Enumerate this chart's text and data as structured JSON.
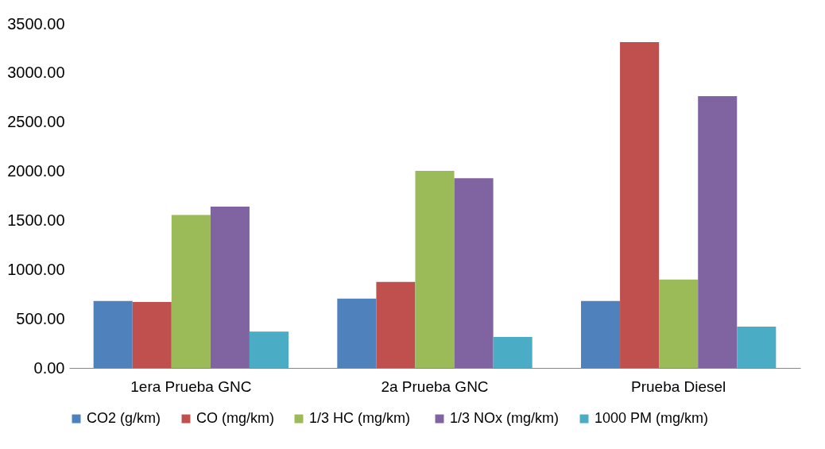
{
  "chart_data": {
    "type": "bar",
    "categories": [
      "1era Prueba GNC",
      "2a Prueba GNC",
      "Prueba Diesel"
    ],
    "series": [
      {
        "name": "CO2 (g/km)",
        "color": "#4f81bd",
        "values": [
          680,
          705,
          680
        ]
      },
      {
        "name": "CO (mg/km)",
        "color": "#c0504d",
        "values": [
          670,
          875,
          3315
        ]
      },
      {
        "name": "1/3 HC  (mg/km)",
        "color": "#9bbb59",
        "values": [
          1555,
          2005,
          900
        ]
      },
      {
        "name": "1/3 NOx (mg/km)",
        "color": "#8064a2",
        "values": [
          1640,
          1930,
          2765
        ]
      },
      {
        "name": "1000 PM (mg/km)",
        "color": "#4bacc6",
        "values": [
          370,
          315,
          420
        ]
      }
    ],
    "ylim": [
      0,
      3500
    ],
    "yticks": [
      {
        "value": 0,
        "label": "0.00"
      },
      {
        "value": 500,
        "label": "500.00"
      },
      {
        "value": 1000,
        "label": "1000.00"
      },
      {
        "value": 1500,
        "label": "1500.00"
      },
      {
        "value": 2000,
        "label": "2000.00"
      },
      {
        "value": 2500,
        "label": "2500.00"
      },
      {
        "value": 3000,
        "label": "3000.00"
      },
      {
        "value": 3500,
        "label": "3500.00"
      }
    ],
    "grid": false,
    "legend": "bottom"
  }
}
